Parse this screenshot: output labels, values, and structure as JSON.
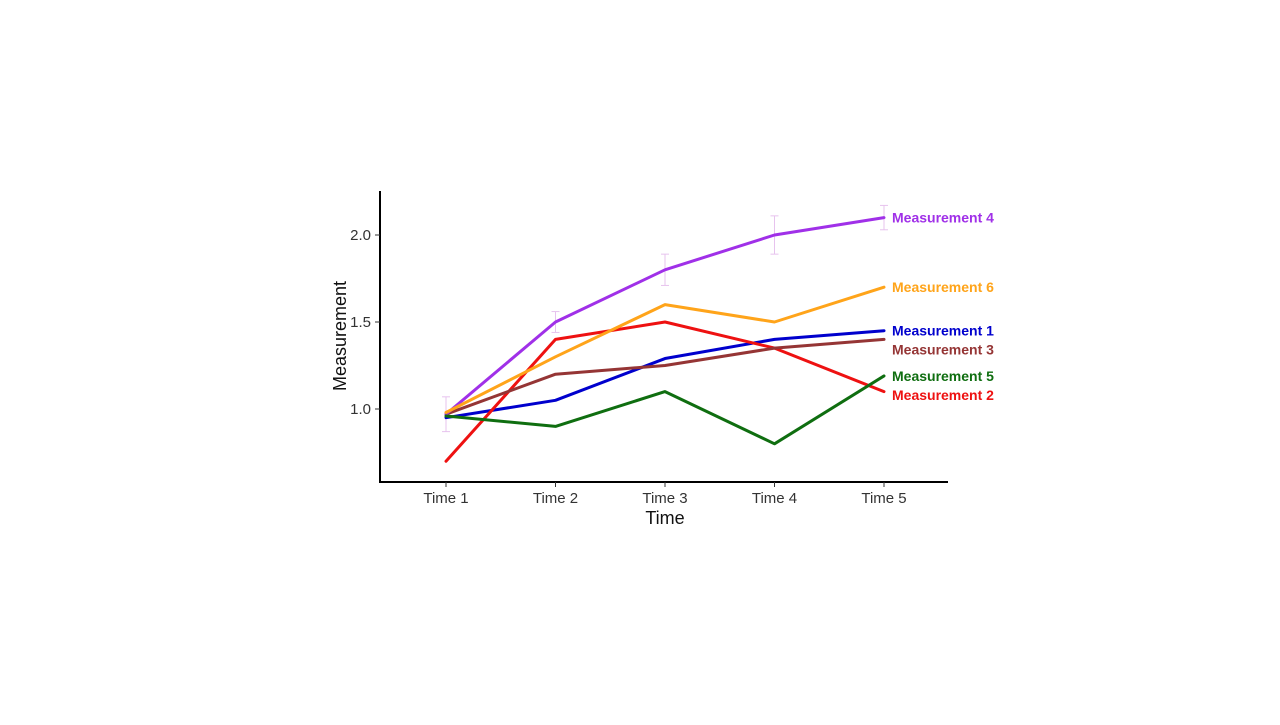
{
  "chart_data": {
    "type": "line",
    "xlabel": "Time",
    "ylabel": "Measurement",
    "categories": [
      "Time 1",
      "Time 2",
      "Time 3",
      "Time 4",
      "Time 5"
    ],
    "ylim": [
      0.59,
      2.26
    ],
    "yticks": [
      1.0,
      1.5,
      2.0
    ],
    "ytick_labels": [
      "1.0",
      "1.5",
      "2.0"
    ],
    "grid": false,
    "legend": "none (direct labels at line ends, right side)",
    "error_bar_color": "#e7c3ee",
    "series": [
      {
        "name": "Measurement 1",
        "color": "#0000cd",
        "values": [
          0.95,
          1.05,
          1.29,
          1.4,
          1.45
        ]
      },
      {
        "name": "Measurement 2",
        "color": "#ee1111",
        "values": [
          0.7,
          1.4,
          1.5,
          1.35,
          1.1
        ]
      },
      {
        "name": "Measurement 3",
        "color": "#953535",
        "values": [
          0.97,
          1.2,
          1.25,
          1.35,
          1.4
        ]
      },
      {
        "name": "Measurement 4",
        "color": "#a030e8",
        "values": [
          0.97,
          1.5,
          1.8,
          2.0,
          2.1
        ],
        "errors": [
          0.1,
          0.06,
          0.09,
          0.11,
          0.07
        ]
      },
      {
        "name": "Measurement 5",
        "color": "#0f6e10",
        "values": [
          0.96,
          0.9,
          1.1,
          0.8,
          1.19
        ]
      },
      {
        "name": "Measurement 6",
        "color": "#ffa41a",
        "values": [
          0.98,
          1.3,
          1.6,
          1.5,
          1.7
        ]
      }
    ]
  }
}
